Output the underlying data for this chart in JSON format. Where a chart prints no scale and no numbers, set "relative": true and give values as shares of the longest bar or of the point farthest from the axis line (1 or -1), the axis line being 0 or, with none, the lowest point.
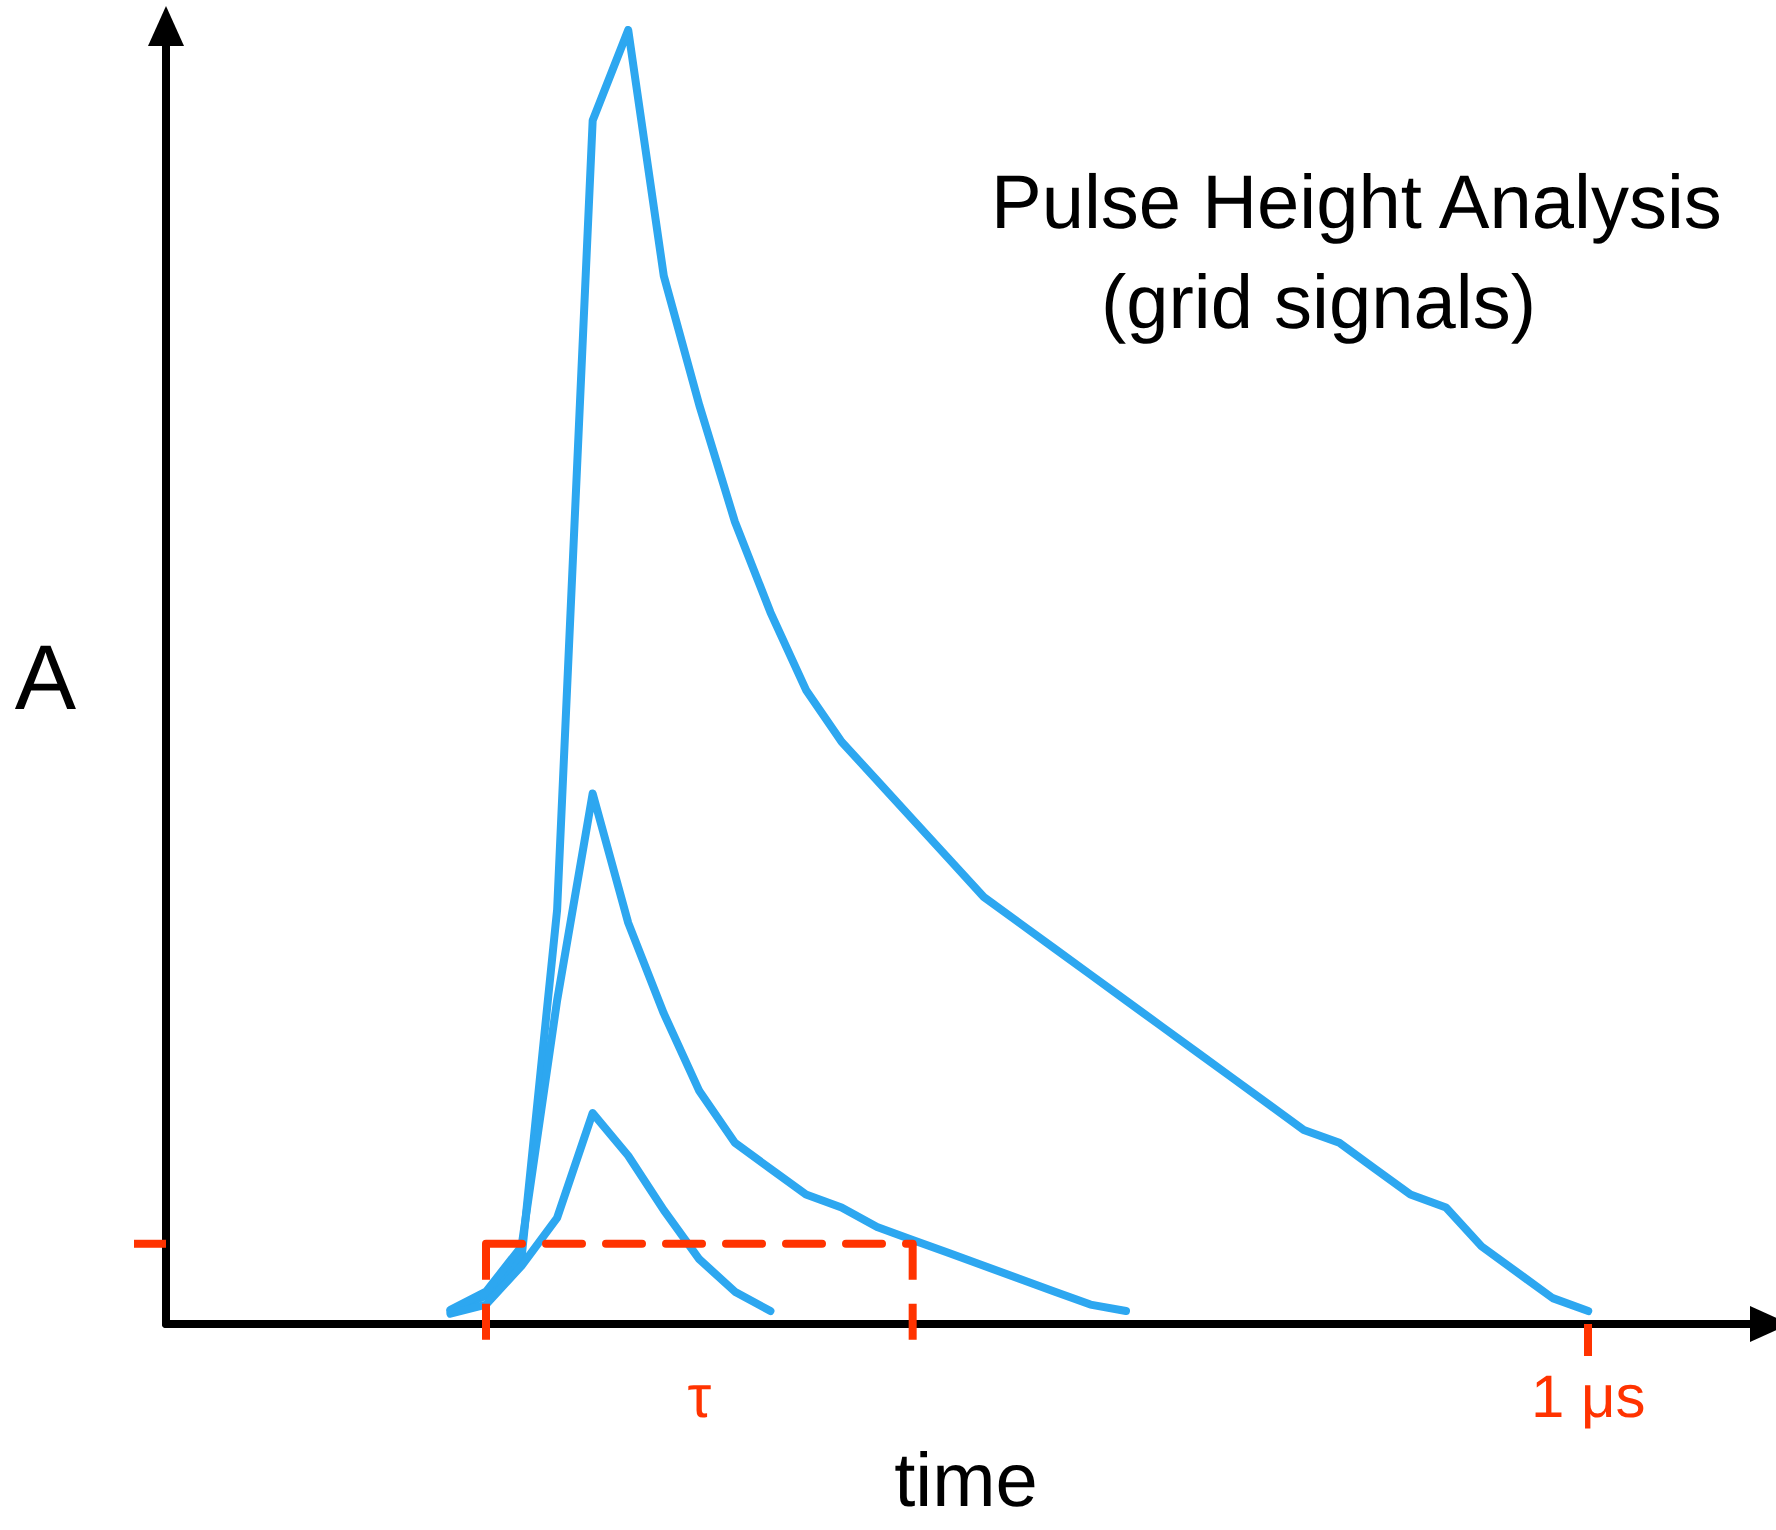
{
  "chart_data": {
    "type": "line",
    "title": "Pulse Height Analysis",
    "subtitle": "(grid signals)",
    "xlabel": "time",
    "ylabel": "A",
    "relative": true,
    "marker": "none",
    "line_style": "solid",
    "grid": false,
    "categories": [
      null,
      null,
      null,
      null,
      null,
      null,
      null,
      null,
      null,
      null,
      null,
      null,
      null,
      null,
      null,
      "τ",
      null,
      null,
      null,
      null,
      null,
      null,
      null,
      null,
      null,
      null,
      null,
      null,
      null,
      null,
      null,
      null,
      null,
      null,
      null,
      null,
      null,
      null,
      null,
      null,
      "1 μs",
      null,
      null,
      null,
      null,
      null
    ],
    "series": [
      {
        "color": "#2da7f0",
        "values": [
          null,
          null,
          null,
          null,
          null,
          null,
          null,
          null,
          0.01,
          0.022,
          0.051,
          0.32,
          0.93,
          1,
          0.81,
          0.71,
          0.62,
          0.55,
          0.49,
          0.45,
          0.42,
          0.39,
          0.36,
          0.33,
          0.31,
          0.29,
          0.27,
          0.25,
          0.23,
          0.21,
          0.19,
          0.17,
          0.15,
          0.14,
          0.12,
          0.1,
          0.09,
          0.06,
          0.04,
          0.02,
          0.01,
          null,
          null,
          null,
          null,
          null
        ]
      },
      {
        "color": "#2da7f0",
        "values": [
          null,
          null,
          null,
          null,
          null,
          null,
          null,
          null,
          0.011,
          0.025,
          0.06,
          0.25,
          0.41,
          0.31,
          0.24,
          0.18,
          0.14,
          0.12,
          0.1,
          0.09,
          0.075,
          0.065,
          0.055,
          0.045,
          0.035,
          0.025,
          0.015,
          0.01,
          null,
          null,
          null,
          null,
          null,
          null,
          null,
          null,
          null,
          null,
          null,
          null,
          null,
          null,
          null,
          null,
          null,
          null
        ]
      },
      {
        "color": "#2da7f0",
        "values": [
          null,
          null,
          null,
          null,
          null,
          null,
          null,
          null,
          0.008,
          0.015,
          0.045,
          0.082,
          0.163,
          0.13,
          0.088,
          0.05,
          0.025,
          0.01,
          null,
          null,
          null,
          null,
          null,
          null,
          null,
          null,
          null,
          null,
          null,
          null,
          null,
          null,
          null,
          null,
          null,
          null,
          null,
          null,
          null,
          null,
          null,
          null,
          null,
          null,
          null,
          null
        ]
      },
      {
        "color": "#ff3300",
        "line_style": "dashed",
        "values": [
          null,
          null,
          null,
          null,
          null,
          null,
          null,
          null,
          null,
          0.062,
          0.062,
          0.062,
          0.062,
          0.062,
          0.062,
          0.062,
          0.062,
          0.062,
          0.062,
          0.062,
          0.062,
          0.062,
          null,
          null,
          null,
          null,
          null,
          null,
          null,
          null,
          null,
          null,
          null,
          null,
          null,
          null,
          null,
          null,
          null,
          null,
          null,
          null,
          null,
          null,
          null,
          null
        ]
      }
    ]
  }
}
